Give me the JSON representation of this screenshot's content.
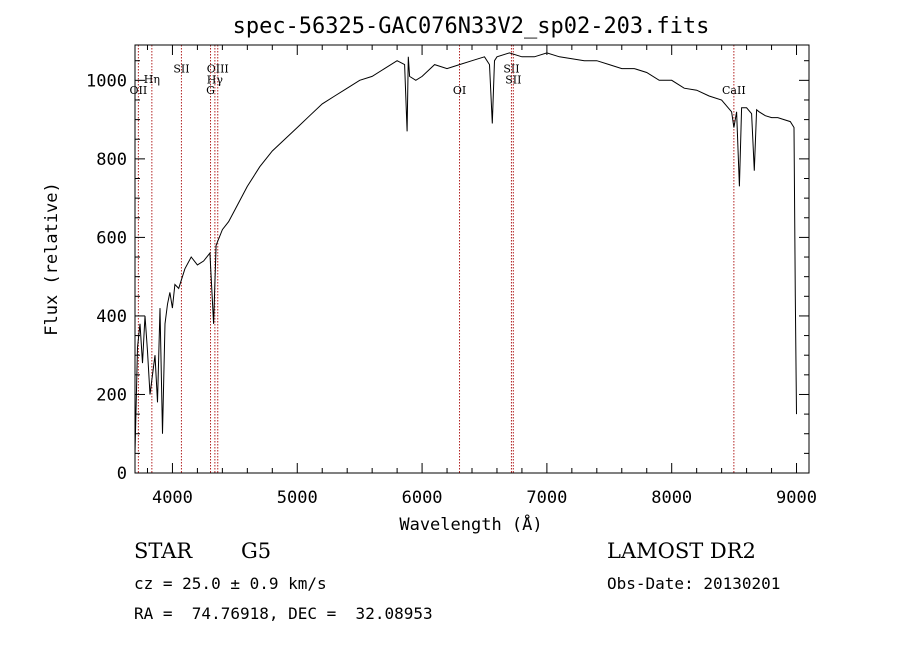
{
  "chart_data": {
    "type": "line",
    "title": "spec-56325-GAC076N33V2_sp02-203.fits",
    "xlabel": "Wavelength (Å)",
    "ylabel": "Flux (relative)",
    "xlim": [
      3700,
      9100
    ],
    "ylim": [
      0,
      1090
    ],
    "xticks": [
      4000,
      5000,
      6000,
      7000,
      8000,
      9000
    ],
    "yticks": [
      0,
      200,
      400,
      600,
      800,
      1000
    ],
    "series": [
      {
        "name": "spectrum",
        "x": [
          3700,
          3720,
          3740,
          3760,
          3780,
          3800,
          3820,
          3840,
          3860,
          3880,
          3900,
          3920,
          3940,
          3960,
          3980,
          4000,
          4020,
          4050,
          4100,
          4150,
          4200,
          4250,
          4300,
          4330,
          4350,
          4400,
          4450,
          4500,
          4550,
          4600,
          4700,
          4800,
          4900,
          5000,
          5100,
          5200,
          5300,
          5400,
          5500,
          5600,
          5700,
          5800,
          5860,
          5880,
          5890,
          5900,
          5950,
          6000,
          6100,
          6200,
          6300,
          6400,
          6500,
          6540,
          6563,
          6580,
          6600,
          6700,
          6800,
          6900,
          7000,
          7100,
          7200,
          7300,
          7400,
          7500,
          7600,
          7700,
          7800,
          7900,
          8000,
          8100,
          8200,
          8300,
          8400,
          8480,
          8498,
          8520,
          8542,
          8560,
          8600,
          8640,
          8662,
          8680,
          8700,
          8750,
          8800,
          8850,
          8900,
          8950,
          8980,
          8990,
          9000
        ],
        "y": [
          50,
          320,
          380,
          280,
          400,
          310,
          200,
          250,
          300,
          180,
          420,
          100,
          380,
          430,
          460,
          420,
          480,
          470,
          520,
          550,
          530,
          540,
          560,
          380,
          580,
          620,
          640,
          670,
          700,
          730,
          780,
          820,
          850,
          880,
          910,
          940,
          960,
          980,
          1000,
          1010,
          1030,
          1050,
          1040,
          870,
          1060,
          1010,
          1000,
          1010,
          1040,
          1030,
          1040,
          1050,
          1060,
          1040,
          890,
          1050,
          1060,
          1070,
          1060,
          1060,
          1070,
          1060,
          1055,
          1050,
          1050,
          1040,
          1030,
          1030,
          1020,
          1000,
          1000,
          980,
          975,
          960,
          950,
          920,
          880,
          920,
          730,
          930,
          930,
          915,
          770,
          925,
          920,
          910,
          905,
          905,
          900,
          895,
          880,
          450,
          150
        ]
      }
    ],
    "line_markers": [
      {
        "label": "OII",
        "x": 3727,
        "y": 976
      },
      {
        "label": "Hη",
        "x": 3835,
        "y": 1003
      },
      {
        "label": "SII",
        "x": 4072,
        "y": 1030
      },
      {
        "label": "OIII",
        "x": 4363,
        "y": 1030
      },
      {
        "label": "Hγ",
        "x": 4340,
        "y": 1002
      },
      {
        "label": "G",
        "x": 4305,
        "y": 975
      },
      {
        "label": "OI",
        "x": 6300,
        "y": 975
      },
      {
        "label": "SII",
        "x": 6716,
        "y": 1030
      },
      {
        "label": "SII",
        "x": 6731,
        "y": 1002
      },
      {
        "label": "CaII",
        "x": 8498,
        "y": 975
      }
    ]
  },
  "info": {
    "class": "STAR",
    "subclass": "G5",
    "survey": "LAMOST DR2",
    "cz": "cz = 25.0 ± 0.9 km/s",
    "obs_date": "Obs-Date: 20130201",
    "coords": "RA =  74.76918, DEC =  32.08953"
  }
}
